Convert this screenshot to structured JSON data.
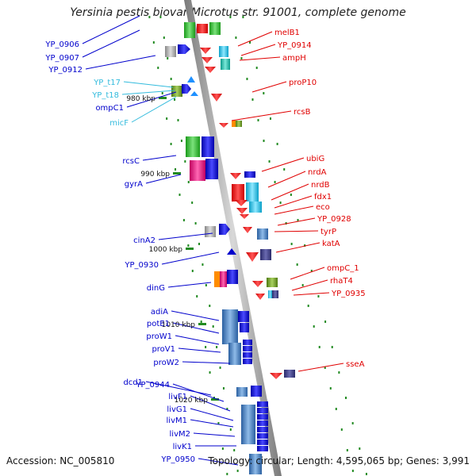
{
  "title": "Yersinia pestis biovar Microtus str. 91001, complete genome",
  "accession": "Accession: NC_005810",
  "topology": "Topology: circular; Length: 4,595,065 bp; Genes: 3,991",
  "colors": {
    "left_label": "#0000cc",
    "left_light_label": "#33bbdd",
    "right_label": "#e00000",
    "backbone": "#999999",
    "tick": "#228b22"
  },
  "kbp_labels": [
    "980 kbp",
    "990 kbp",
    "1000 kbp",
    "1010 kbp",
    "1020 kbp"
  ],
  "left_labels": [
    {
      "text": "YP_0906",
      "color": "blue"
    },
    {
      "text": "YP_0907",
      "color": "blue"
    },
    {
      "text": "YP_0912",
      "color": "blue"
    },
    {
      "text": "YP_t17",
      "color": "light"
    },
    {
      "text": "YP_t18",
      "color": "light"
    },
    {
      "text": "ompC1",
      "color": "blue"
    },
    {
      "text": "micF",
      "color": "light"
    },
    {
      "text": "rcsC",
      "color": "blue"
    },
    {
      "text": "gyrA",
      "color": "blue"
    },
    {
      "text": "cinA2",
      "color": "blue"
    },
    {
      "text": "YP_0930",
      "color": "blue"
    },
    {
      "text": "dinG",
      "color": "blue"
    },
    {
      "text": "adiA",
      "color": "blue"
    },
    {
      "text": "potE1",
      "color": "blue"
    },
    {
      "text": "proW1",
      "color": "blue"
    },
    {
      "text": "proV1",
      "color": "blue"
    },
    {
      "text": "proW2",
      "color": "blue"
    },
    {
      "text": "dcd1",
      "color": "blue"
    },
    {
      "text": "YP_0944",
      "color": "blue"
    },
    {
      "text": "livF1",
      "color": "blue"
    },
    {
      "text": "livG1",
      "color": "blue"
    },
    {
      "text": "livM1",
      "color": "blue"
    },
    {
      "text": "livM2",
      "color": "blue"
    },
    {
      "text": "livK1",
      "color": "blue"
    },
    {
      "text": "YP_0950",
      "color": "blue"
    }
  ],
  "right_labels": [
    "melB1",
    "YP_0914",
    "ampH",
    "proP10",
    "rcsB",
    "ubiG",
    "nrdA",
    "nrdB",
    "fdx1",
    "eco",
    "YP_0928",
    "tyrP",
    "katA",
    "ompC_1",
    "rhaT4",
    "YP_0935",
    "sseA"
  ]
}
